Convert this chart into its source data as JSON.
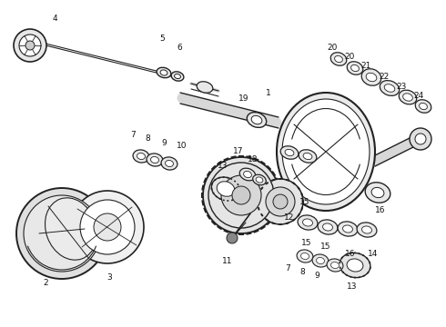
{
  "bg_color": "#ffffff",
  "line_color": "#222222",
  "label_color": "#111111",
  "fig_width": 4.9,
  "fig_height": 3.6,
  "dpi": 100
}
